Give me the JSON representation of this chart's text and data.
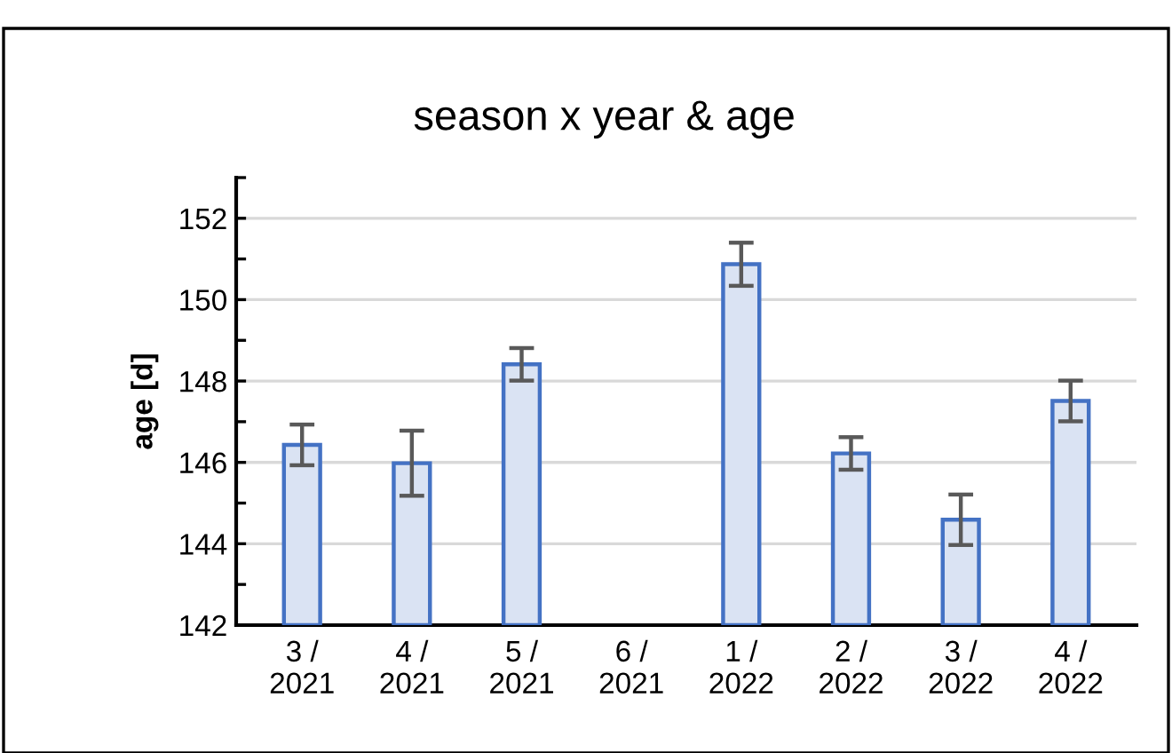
{
  "chart_data": {
    "type": "bar",
    "title": "season x year & age",
    "ylabel": "age [d]",
    "categories": [
      "3 /\n2021",
      "4 /\n2021",
      "5 /\n2021",
      "6 /\n2021",
      "1 /\n2022",
      "2 /\n2022",
      "3 /\n2022",
      "4 /\n2022"
    ],
    "series": [
      {
        "color": "#dae3f3",
        "values": [
          146.43,
          145.98,
          148.41,
          null,
          150.87,
          146.22,
          144.59,
          147.51
        ],
        "errors": [
          0.5,
          0.8,
          0.4,
          null,
          0.53,
          0.4,
          0.62,
          0.5
        ]
      }
    ],
    "ylim": [
      142,
      153
    ],
    "yticks": [
      142,
      {
        "value": 143,
        "label": null
      },
      144,
      {
        "value": 145,
        "label": null
      },
      146,
      {
        "value": 147,
        "label": null
      },
      148,
      {
        "value": 149,
        "label": null
      },
      150,
      {
        "value": 151,
        "label": null
      },
      152,
      {
        "value": 153,
        "label": null
      }
    ],
    "grid": "y",
    "legend": false
  }
}
